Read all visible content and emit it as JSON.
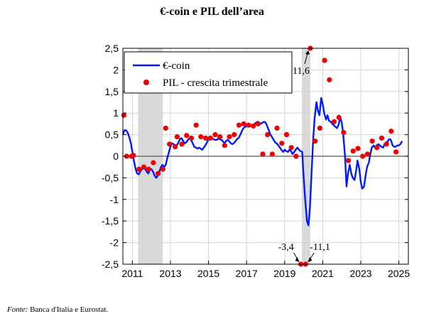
{
  "title": "€-coin e PIL dell’area",
  "source": {
    "label": "Fonte:",
    "text": "Banca d'Italia e Eurostat."
  },
  "colors": {
    "ecoin": "#0019ff",
    "pil": "#ee0000",
    "recession": "#d9d9d9",
    "zero": "#555555",
    "grid": "#d6d6d6"
  },
  "chart_data": {
    "type": "line",
    "title": "€-coin e PIL dell’area",
    "xlabel": "",
    "ylabel": "",
    "xlim": [
      2010.5,
      2025.5
    ],
    "ylim": [
      -2.5,
      2.5
    ],
    "x_ticks": [
      2011,
      2013,
      2015,
      2017,
      2019,
      2021,
      2023,
      2025
    ],
    "x_tick_labels": [
      "2011",
      "2013",
      "2015",
      "2017",
      "2019",
      "2021",
      "2023",
      "2025"
    ],
    "y_ticks": [
      2.5,
      2,
      1.5,
      1,
      0.5,
      0,
      -0.5,
      -1,
      -1.5,
      -2,
      -2.5
    ],
    "y_tick_labels": [
      "2,5",
      "2",
      "1,5",
      "1",
      "0,5",
      "0",
      "-0,5",
      "-1",
      "-1,5",
      "-2",
      "-2,5"
    ],
    "grid": true,
    "legend_position": "top-left",
    "shaded_periods": [
      [
        2011.3,
        2012.6
      ],
      [
        2019.9,
        2020.35
      ]
    ],
    "series": [
      {
        "name": "€-coin",
        "type": "line",
        "points": [
          [
            2010.5,
            0.5
          ],
          [
            2010.58,
            0.6
          ],
          [
            2010.67,
            0.6
          ],
          [
            2010.75,
            0.55
          ],
          [
            2010.83,
            0.45
          ],
          [
            2010.92,
            0.3
          ],
          [
            2011.0,
            0.1
          ],
          [
            2011.08,
            -0.1
          ],
          [
            2011.17,
            -0.3
          ],
          [
            2011.25,
            -0.4
          ],
          [
            2011.33,
            -0.42
          ],
          [
            2011.42,
            -0.35
          ],
          [
            2011.5,
            -0.3
          ],
          [
            2011.58,
            -0.25
          ],
          [
            2011.67,
            -0.3
          ],
          [
            2011.75,
            -0.35
          ],
          [
            2011.83,
            -0.4
          ],
          [
            2011.92,
            -0.32
          ],
          [
            2012.0,
            -0.3
          ],
          [
            2012.08,
            -0.35
          ],
          [
            2012.17,
            -0.45
          ],
          [
            2012.25,
            -0.5
          ],
          [
            2012.33,
            -0.45
          ],
          [
            2012.42,
            -0.35
          ],
          [
            2012.5,
            -0.25
          ],
          [
            2012.58,
            -0.2
          ],
          [
            2012.67,
            -0.25
          ],
          [
            2012.75,
            -0.2
          ],
          [
            2012.83,
            -0.05
          ],
          [
            2012.92,
            0.1
          ],
          [
            2013.0,
            0.22
          ],
          [
            2013.08,
            0.3
          ],
          [
            2013.17,
            0.28
          ],
          [
            2013.25,
            0.2
          ],
          [
            2013.33,
            0.25
          ],
          [
            2013.42,
            0.32
          ],
          [
            2013.5,
            0.4
          ],
          [
            2013.58,
            0.42
          ],
          [
            2013.67,
            0.35
          ],
          [
            2013.75,
            0.3
          ],
          [
            2013.83,
            0.32
          ],
          [
            2013.92,
            0.38
          ],
          [
            2014.0,
            0.42
          ],
          [
            2014.08,
            0.38
          ],
          [
            2014.17,
            0.3
          ],
          [
            2014.25,
            0.22
          ],
          [
            2014.33,
            0.2
          ],
          [
            2014.42,
            0.18
          ],
          [
            2014.5,
            0.2
          ],
          [
            2014.58,
            0.18
          ],
          [
            2014.67,
            0.15
          ],
          [
            2014.75,
            0.2
          ],
          [
            2014.83,
            0.25
          ],
          [
            2014.92,
            0.32
          ],
          [
            2015.0,
            0.4
          ],
          [
            2015.08,
            0.42
          ],
          [
            2015.17,
            0.4
          ],
          [
            2015.25,
            0.4
          ],
          [
            2015.33,
            0.38
          ],
          [
            2015.42,
            0.38
          ],
          [
            2015.5,
            0.4
          ],
          [
            2015.58,
            0.4
          ],
          [
            2015.67,
            0.38
          ],
          [
            2015.75,
            0.35
          ],
          [
            2015.83,
            0.3
          ],
          [
            2015.92,
            0.35
          ],
          [
            2016.0,
            0.38
          ],
          [
            2016.08,
            0.35
          ],
          [
            2016.17,
            0.3
          ],
          [
            2016.25,
            0.28
          ],
          [
            2016.33,
            0.3
          ],
          [
            2016.42,
            0.35
          ],
          [
            2016.5,
            0.4
          ],
          [
            2016.58,
            0.42
          ],
          [
            2016.67,
            0.5
          ],
          [
            2016.75,
            0.58
          ],
          [
            2016.83,
            0.65
          ],
          [
            2016.92,
            0.68
          ],
          [
            2017.0,
            0.7
          ],
          [
            2017.08,
            0.72
          ],
          [
            2017.17,
            0.7
          ],
          [
            2017.25,
            0.7
          ],
          [
            2017.33,
            0.72
          ],
          [
            2017.42,
            0.75
          ],
          [
            2017.5,
            0.78
          ],
          [
            2017.58,
            0.8
          ],
          [
            2017.67,
            0.78
          ],
          [
            2017.75,
            0.75
          ],
          [
            2017.83,
            0.78
          ],
          [
            2017.92,
            0.8
          ],
          [
            2018.0,
            0.78
          ],
          [
            2018.08,
            0.7
          ],
          [
            2018.17,
            0.6
          ],
          [
            2018.25,
            0.5
          ],
          [
            2018.33,
            0.45
          ],
          [
            2018.42,
            0.38
          ],
          [
            2018.5,
            0.32
          ],
          [
            2018.58,
            0.3
          ],
          [
            2018.67,
            0.25
          ],
          [
            2018.75,
            0.2
          ],
          [
            2018.83,
            0.15
          ],
          [
            2018.92,
            0.1
          ],
          [
            2019.0,
            0.15
          ],
          [
            2019.08,
            0.12
          ],
          [
            2019.17,
            0.1
          ],
          [
            2019.25,
            0.15
          ],
          [
            2019.33,
            0.12
          ],
          [
            2019.42,
            0.05
          ],
          [
            2019.5,
            0.1
          ],
          [
            2019.58,
            0.15
          ],
          [
            2019.67,
            0.2
          ],
          [
            2019.75,
            0.15
          ],
          [
            2019.83,
            0.12
          ],
          [
            2019.92,
            0.1
          ],
          [
            2020.0,
            -0.5
          ],
          [
            2020.08,
            -1.0
          ],
          [
            2020.17,
            -1.5
          ],
          [
            2020.25,
            -1.6
          ],
          [
            2020.33,
            -1.2
          ],
          [
            2020.42,
            -0.3
          ],
          [
            2020.5,
            0.4
          ],
          [
            2020.58,
            0.9
          ],
          [
            2020.67,
            1.25
          ],
          [
            2020.75,
            1.05
          ],
          [
            2020.83,
            0.95
          ],
          [
            2020.92,
            1.35
          ],
          [
            2021.0,
            1.2
          ],
          [
            2021.08,
            1.0
          ],
          [
            2021.17,
            0.85
          ],
          [
            2021.25,
            0.95
          ],
          [
            2021.33,
            0.82
          ],
          [
            2021.42,
            0.8
          ],
          [
            2021.5,
            0.75
          ],
          [
            2021.58,
            0.72
          ],
          [
            2021.67,
            0.68
          ],
          [
            2021.75,
            0.65
          ],
          [
            2021.83,
            0.72
          ],
          [
            2021.92,
            0.9
          ],
          [
            2022.0,
            0.78
          ],
          [
            2022.08,
            0.5
          ],
          [
            2022.17,
            0.0
          ],
          [
            2022.25,
            -0.7
          ],
          [
            2022.33,
            -0.4
          ],
          [
            2022.42,
            -0.2
          ],
          [
            2022.5,
            -0.4
          ],
          [
            2022.58,
            -0.5
          ],
          [
            2022.67,
            -0.55
          ],
          [
            2022.75,
            -0.35
          ],
          [
            2022.83,
            -0.1
          ],
          [
            2022.92,
            -0.3
          ],
          [
            2023.0,
            -0.6
          ],
          [
            2023.08,
            -0.75
          ],
          [
            2023.17,
            -0.7
          ],
          [
            2023.25,
            -0.45
          ],
          [
            2023.33,
            -0.25
          ],
          [
            2023.42,
            -0.15
          ],
          [
            2023.5,
            0.05
          ],
          [
            2023.58,
            0.2
          ],
          [
            2023.67,
            0.25
          ],
          [
            2023.75,
            0.2
          ],
          [
            2023.83,
            0.25
          ],
          [
            2023.92,
            0.28
          ],
          [
            2024.0,
            0.25
          ],
          [
            2024.08,
            0.22
          ],
          [
            2024.17,
            0.2
          ],
          [
            2024.25,
            0.28
          ],
          [
            2024.33,
            0.32
          ],
          [
            2024.42,
            0.35
          ],
          [
            2024.5,
            0.4
          ],
          [
            2024.58,
            0.38
          ],
          [
            2024.67,
            0.25
          ],
          [
            2024.75,
            0.22
          ],
          [
            2024.83,
            0.22
          ],
          [
            2024.92,
            0.25
          ],
          [
            2025.0,
            0.25
          ],
          [
            2025.08,
            0.28
          ],
          [
            2025.17,
            0.35
          ]
        ]
      },
      {
        "name": "PIL - crescita trimestrale",
        "type": "scatter",
        "points": [
          [
            2010.55,
            0.95
          ],
          [
            2010.7,
            0.0
          ],
          [
            2010.95,
            0.0
          ],
          [
            2011.05,
            0.02
          ],
          [
            2011.35,
            -0.3
          ],
          [
            2011.6,
            -0.25
          ],
          [
            2011.85,
            -0.3
          ],
          [
            2012.1,
            -0.15
          ],
          [
            2012.35,
            -0.4
          ],
          [
            2012.6,
            -0.3
          ],
          [
            2012.75,
            0.65
          ],
          [
            2012.95,
            0.28
          ],
          [
            2013.25,
            0.22
          ],
          [
            2013.35,
            0.45
          ],
          [
            2013.6,
            0.28
          ],
          [
            2013.85,
            0.48
          ],
          [
            2014.1,
            0.42
          ],
          [
            2014.35,
            0.72
          ],
          [
            2014.6,
            0.45
          ],
          [
            2014.85,
            0.42
          ],
          [
            2015.1,
            0.42
          ],
          [
            2015.35,
            0.5
          ],
          [
            2015.6,
            0.45
          ],
          [
            2015.85,
            0.25
          ],
          [
            2016.1,
            0.45
          ],
          [
            2016.35,
            0.5
          ],
          [
            2016.6,
            0.72
          ],
          [
            2016.85,
            0.75
          ],
          [
            2017.1,
            0.72
          ],
          [
            2017.35,
            0.7
          ],
          [
            2017.6,
            0.75
          ],
          [
            2017.85,
            0.05
          ],
          [
            2018.1,
            0.5
          ],
          [
            2018.35,
            0.05
          ],
          [
            2018.6,
            0.65
          ],
          [
            2018.85,
            0.3
          ],
          [
            2019.1,
            0.5
          ],
          [
            2019.35,
            0.2
          ],
          [
            2019.6,
            0.0
          ],
          [
            2019.85,
            -2.5
          ],
          [
            2020.1,
            -2.5
          ],
          [
            2020.35,
            2.5
          ],
          [
            2020.6,
            0.35
          ],
          [
            2020.85,
            0.65
          ],
          [
            2021.1,
            2.22
          ],
          [
            2021.35,
            1.77
          ],
          [
            2021.6,
            0.8
          ],
          [
            2021.85,
            0.9
          ],
          [
            2022.1,
            0.55
          ],
          [
            2022.35,
            -0.1
          ],
          [
            2022.6,
            0.12
          ],
          [
            2022.85,
            0.18
          ],
          [
            2023.1,
            0.0
          ],
          [
            2023.35,
            0.05
          ],
          [
            2023.6,
            0.35
          ],
          [
            2023.85,
            0.2
          ],
          [
            2024.1,
            0.42
          ],
          [
            2024.35,
            0.28
          ],
          [
            2024.6,
            0.58
          ],
          [
            2024.85,
            0.1
          ]
        ]
      }
    ],
    "annotations": [
      {
        "text": "11,6",
        "x": 2020.35,
        "y": 2.5
      },
      {
        "text": "-3,4",
        "x": 2019.85,
        "y": -2.5
      },
      {
        "text": "-11,1",
        "x": 2020.1,
        "y": -2.5
      }
    ]
  }
}
